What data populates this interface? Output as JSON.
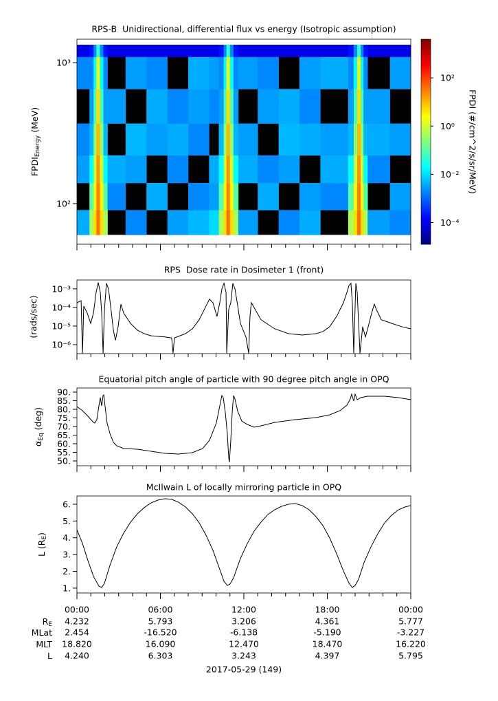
{
  "time_axis": {
    "xlim": [
      0,
      24
    ],
    "xticks": [
      {
        "value": 0,
        "label": "00:00"
      },
      {
        "value": 6,
        "label": "06:00"
      },
      {
        "value": 12,
        "label": "12:00"
      },
      {
        "value": 18,
        "label": "18:00"
      },
      {
        "value": 24,
        "label": "00:00"
      }
    ],
    "xminor": [
      1,
      2,
      3,
      4,
      5,
      7,
      8,
      9,
      10,
      11,
      13,
      14,
      15,
      16,
      17,
      19,
      20,
      21,
      22,
      23
    ],
    "date": "2017-05-29 (149)"
  },
  "chart_data": [
    {
      "type": "heatmap",
      "title": "RPS-B  Unidirectional, differential flux vs energy (Isotropic assumption)",
      "ylabel": [
        {
          "text": "FPDI"
        },
        {
          "text": "Energy",
          "sub": true
        },
        {
          "text": " (MeV)"
        }
      ],
      "ylog": true,
      "ylim": [
        51.5,
        1466
      ],
      "yticks": [
        {
          "value": 100,
          "label": "10²"
        },
        {
          "value": 1000,
          "label": "10³"
        }
      ],
      "x": [
        0,
        0.9,
        1.2,
        1.4,
        1.65,
        1.9,
        2.2,
        3.5,
        5,
        6.5,
        8,
        9.5,
        10.2,
        10.55,
        10.75,
        11.0,
        11.25,
        11.6,
        13,
        14.5,
        16,
        17.5,
        19.5,
        19.9,
        20.15,
        20.4,
        20.6,
        20.9,
        22.5,
        24
      ],
      "y": [
        60,
        90,
        140,
        220,
        370,
        650,
        1100,
        1340
      ],
      "values": [
        [
          0.004,
          0.5,
          5,
          40,
          5,
          0.5,
          null,
          0.002,
          null,
          0.003,
          0.005,
          0.01,
          0.5,
          5,
          40,
          5,
          0.5,
          0.003,
          null,
          0.002,
          0.004,
          null,
          0.5,
          5,
          40,
          5,
          0.5,
          0.003,
          0.002
        ],
        [
          null,
          0.1,
          3,
          30,
          3,
          0.1,
          0.002,
          null,
          0.004,
          null,
          0.002,
          0.003,
          0.1,
          3,
          30,
          3,
          0.1,
          null,
          0.004,
          null,
          0.003,
          0.002,
          0.1,
          3,
          30,
          3,
          0.1,
          null,
          0.003
        ],
        [
          0.003,
          0.02,
          1,
          20,
          1,
          0.02,
          0.004,
          0.003,
          null,
          0.002,
          null,
          0.004,
          0.02,
          1,
          20,
          1,
          0.02,
          0.004,
          0.002,
          0.003,
          null,
          0.004,
          0.02,
          1,
          20,
          1,
          0.02,
          0.002,
          null
        ],
        [
          0.002,
          0.005,
          0.3,
          10,
          0.3,
          0.005,
          null,
          0.005,
          0.003,
          0.004,
          0.002,
          null,
          0.005,
          0.3,
          10,
          0.3,
          0.005,
          0.003,
          null,
          0.005,
          0.004,
          0.003,
          0.005,
          0.3,
          10,
          0.3,
          0.005,
          0.004,
          0.003
        ],
        [
          null,
          0.003,
          0.08,
          5,
          0.08,
          0.003,
          0.003,
          null,
          0.004,
          0.002,
          0.003,
          0.002,
          0.003,
          0.08,
          5,
          0.08,
          0.003,
          null,
          0.003,
          0.004,
          0.002,
          null,
          0.003,
          0.08,
          5,
          0.08,
          0.003,
          0.003,
          null
        ],
        [
          0.002,
          0.002,
          0.02,
          2,
          0.02,
          0.002,
          null,
          0.003,
          0.002,
          null,
          0.004,
          0.003,
          0.002,
          0.02,
          2,
          0.02,
          0.002,
          0.003,
          0.002,
          null,
          0.003,
          0.004,
          0.002,
          0.02,
          2,
          0.02,
          0.002,
          null,
          0.003
        ],
        [
          0.0001,
          0.0002,
          0.002,
          0.05,
          0.002,
          0.0002,
          0.0001,
          0.0001,
          0.0001,
          0.0001,
          0.0001,
          0.0001,
          0.0002,
          0.002,
          0.05,
          0.002,
          0.0002,
          0.0001,
          0.0001,
          0.0001,
          0.0001,
          0.0001,
          0.0002,
          0.002,
          0.05,
          0.002,
          0.0002,
          0.0001,
          0.0001
        ]
      ],
      "colormap": "jet",
      "colorbar": {
        "label": "FPDI (#/cm^2/s/sr/MeV)",
        "log": true,
        "lim": [
          1.26e-05,
          4000
        ],
        "ticks": [
          {
            "value": 0.0001,
            "label": "10⁻⁴"
          },
          {
            "value": 0.01,
            "label": "10⁻²"
          },
          {
            "value": 1,
            "label": "10⁰"
          },
          {
            "value": 100,
            "label": "10²"
          }
        ]
      }
    },
    {
      "type": "line",
      "title": "RPS  Dose rate in Dosimeter 1 (front)",
      "ylabel": [
        {
          "text": "(rads/sec)"
        }
      ],
      "ylog": true,
      "ylim": [
        3.3e-07,
        0.003
      ],
      "yticks": [
        {
          "value": 1e-06,
          "label": "10⁻⁶"
        },
        {
          "value": 1e-05,
          "label": "10⁻⁵"
        },
        {
          "value": 0.0001,
          "label": "10⁻⁴"
        },
        {
          "value": 0.001,
          "label": "10⁻³"
        }
      ],
      "color": "#000000",
      "x": [
        0,
        0.3,
        0.4,
        0.49,
        0.74,
        0.99,
        1.19,
        1.38,
        1.53,
        1.68,
        1.78,
        1.88,
        1.98,
        2.12,
        2.27,
        2.42,
        2.62,
        2.77,
        2.96,
        3.16,
        3.36,
        3.85,
        4.35,
        4.84,
        5.33,
        6.32,
        6.81,
        6.91,
        7.01,
        7.31,
        7.8,
        8.3,
        8.79,
        9.28,
        9.53,
        9.78,
        10.07,
        10.27,
        10.42,
        10.57,
        10.72,
        10.77,
        10.91,
        11.06,
        11.21,
        11.36,
        11.56,
        11.75,
        12.15,
        12.35,
        12.44,
        12.54,
        13.23,
        14.22,
        15.21,
        16.2,
        17.19,
        17.68,
        18.17,
        18.67,
        19.16,
        19.41,
        19.56,
        19.7,
        19.8,
        19.9,
        20.05,
        20.15,
        20.25,
        20.35,
        20.54,
        20.74,
        20.94,
        21.19,
        21.38,
        21.53,
        21.88,
        22.62,
        23.36,
        24
      ],
      "values": [
        0.00018,
        0.00023,
        3.4e-07,
        0.00012,
        5e-05,
        1.4e-05,
        5e-05,
        0.00065,
        0.0022,
        0.00065,
        5e-05,
        3.4e-07,
        7.7e-05,
        0.002,
        0.001,
        0.00012,
        6e-06,
        1.7e-06,
        9.2e-06,
        0.00015,
        5e-05,
        1.4e-05,
        6e-06,
        3.9e-06,
        3e-06,
        2.6e-06,
        2.3e-06,
        3.4e-07,
        2.3e-06,
        2.8e-06,
        3.9e-06,
        7.1e-06,
        2.2e-05,
        0.00012,
        0.00028,
        0.00018,
        3.3e-05,
        0.00018,
        0.001,
        0.002,
        0.00065,
        3.4e-07,
        7.7e-05,
        0.00018,
        0.002,
        0.001,
        0.00012,
        1.4e-05,
        2.6e-06,
        3.4e-07,
        3.3e-05,
        0.00018,
        2.2e-05,
        7.1e-06,
        3.9e-06,
        3.3e-06,
        3.9e-06,
        5e-06,
        9.2e-06,
        3.3e-05,
        0.00018,
        0.00065,
        0.0015,
        0.002,
        0.00018,
        3.4e-07,
        0.002,
        0.00065,
        1.4e-05,
        3.4e-07,
        9.2e-06,
        2.6e-06,
        9.2e-06,
        5e-05,
        0.00015,
        7.7e-05,
        2.2e-05,
        1.4e-05,
        9.2e-06,
        7.1e-06
      ]
    },
    {
      "type": "line",
      "title": "Equatorial pitch angle of particle with 90 degree pitch angle in OPQ",
      "ylabel": [
        {
          "text": "α"
        },
        {
          "text": "Eq",
          "sub": true
        },
        {
          "text": " (deg)"
        }
      ],
      "ylim": [
        47.2,
        92.4
      ],
      "yticks": [
        {
          "value": 50,
          "label": "50."
        },
        {
          "value": 55,
          "label": "55."
        },
        {
          "value": 60,
          "label": "60."
        },
        {
          "value": 65,
          "label": "65."
        },
        {
          "value": 70,
          "label": "70."
        },
        {
          "value": 75,
          "label": "75."
        },
        {
          "value": 80,
          "label": "80."
        },
        {
          "value": 85,
          "label": "85."
        },
        {
          "value": 90,
          "label": "90."
        }
      ],
      "color": "#000000",
      "x": [
        0,
        0.4,
        0.79,
        1.14,
        1.28,
        1.43,
        1.58,
        1.68,
        1.78,
        1.88,
        1.93,
        2.02,
        2.17,
        2.37,
        2.62,
        2.86,
        3.36,
        4.35,
        5.33,
        6.32,
        7.31,
        8.3,
        9.04,
        9.53,
        10.02,
        10.27,
        10.42,
        10.52,
        10.67,
        10.81,
        10.91,
        10.96,
        11.06,
        11.16,
        11.26,
        11.36,
        11.56,
        11.85,
        12.25,
        12.74,
        13.23,
        14.22,
        15.7,
        17.19,
        18.17,
        18.91,
        19.41,
        19.65,
        19.75,
        19.9,
        20.0,
        20.15,
        20.4,
        20.89,
        22.12,
        23.11,
        24
      ],
      "values": [
        81.6,
        79.2,
        76,
        72.8,
        72,
        74,
        82,
        86.8,
        82,
        88,
        88.4,
        82,
        72,
        66,
        60.8,
        58.8,
        57.2,
        56.8,
        55.6,
        54.4,
        54,
        54.8,
        57.2,
        62,
        72,
        82,
        88,
        86.8,
        78,
        66,
        52,
        49.2,
        62,
        78,
        88,
        86,
        78.8,
        73.2,
        71.2,
        69.6,
        70.4,
        72.4,
        74,
        75.2,
        76.8,
        79.2,
        82.4,
        86,
        88.8,
        84.8,
        88.8,
        85.6,
        86.8,
        87.6,
        87.6,
        86.8,
        85.6
      ]
    },
    {
      "type": "line",
      "title": "McIlwain L of locally mirroring particle in OPQ",
      "ylabel": [
        {
          "text": "L (R"
        },
        {
          "text": "E",
          "sub": true
        },
        {
          "text": ")"
        }
      ],
      "ylim": [
        0.71,
        6.49
      ],
      "yticks": [
        {
          "value": 1,
          "label": "1."
        },
        {
          "value": 2,
          "label": "2."
        },
        {
          "value": 3,
          "label": "3."
        },
        {
          "value": 4,
          "label": "4."
        },
        {
          "value": 5,
          "label": "5."
        },
        {
          "value": 6,
          "label": "6."
        }
      ],
      "color": "#000000",
      "x": [
        0,
        0.4,
        0.79,
        1.19,
        1.58,
        1.78,
        1.98,
        2.37,
        2.86,
        3.36,
        3.85,
        4.35,
        4.84,
        5.33,
        5.83,
        6.32,
        6.81,
        7.31,
        7.8,
        8.3,
        8.79,
        9.28,
        9.78,
        10.27,
        10.57,
        10.81,
        11.01,
        11.26,
        11.75,
        12.25,
        12.74,
        13.23,
        13.73,
        14.22,
        14.72,
        15.21,
        15.7,
        16.2,
        16.69,
        17.19,
        17.68,
        18.17,
        18.67,
        19.16,
        19.56,
        19.8,
        20.0,
        20.25,
        20.64,
        21.14,
        21.63,
        22.12,
        22.62,
        23.11,
        23.6,
        24
      ],
      "values": [
        4.48,
        3.66,
        2.64,
        1.7,
        1.12,
        1.04,
        1.29,
        2.35,
        3.46,
        4.28,
        4.93,
        5.43,
        5.8,
        6.08,
        6.25,
        6.33,
        6.29,
        6.12,
        5.84,
        5.43,
        4.89,
        4.16,
        3.25,
        2.11,
        1.41,
        1.16,
        1.25,
        1.61,
        2.76,
        3.66,
        4.4,
        4.93,
        5.39,
        5.67,
        5.88,
        6.0,
        6.04,
        5.92,
        5.67,
        5.26,
        4.73,
        3.99,
        3.05,
        2.02,
        1.29,
        1.04,
        1.16,
        1.53,
        2.52,
        3.46,
        4.24,
        4.89,
        5.34,
        5.67,
        5.84,
        5.92
      ]
    }
  ],
  "ephemeris": {
    "rows": [
      {
        "label": [
          {
            "text": "R"
          },
          {
            "text": "E",
            "sub": true
          }
        ],
        "values": [
          "4.232",
          "5.793",
          "3.206",
          "4.361",
          "5.777"
        ]
      },
      {
        "label": [
          {
            "text": "MLat"
          }
        ],
        "values": [
          "2.454",
          "-16.520",
          "-6.138",
          "-5.190",
          "-3.227"
        ]
      },
      {
        "label": [
          {
            "text": "MLT"
          }
        ],
        "values": [
          "18.820",
          "16.090",
          "12.470",
          "18.470",
          "16.220"
        ]
      },
      {
        "label": [
          {
            "text": "L"
          }
        ],
        "values": [
          "4.240",
          "6.303",
          "3.243",
          "4.397",
          "5.795"
        ]
      }
    ]
  }
}
